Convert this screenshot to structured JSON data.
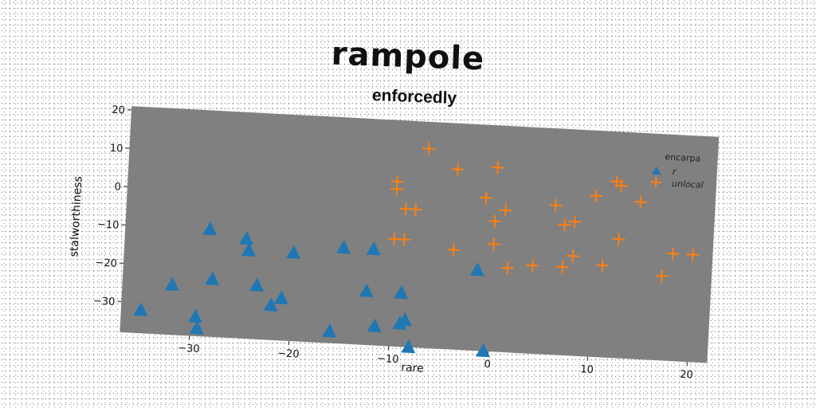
{
  "chart_data": {
    "type": "scatter",
    "title": "rampole",
    "subtitle": "enforcedly",
    "xlabel": "rare",
    "ylabel": "stalworthiness",
    "xlim": [
      -37,
      22
    ],
    "ylim": [
      -38,
      21
    ],
    "xticks": [
      -30,
      -20,
      -10,
      0,
      10,
      20
    ],
    "yticks": [
      -30,
      -20,
      -10,
      0,
      10,
      20
    ],
    "tick_labels_x": [
      "−30",
      "−20",
      "−10",
      "0",
      "10",
      "20"
    ],
    "tick_labels_y": [
      "−30",
      "−20",
      "−10",
      "0",
      "10",
      "20"
    ],
    "grid": false,
    "legend": {
      "title": "encarpa",
      "placement": "top-right"
    },
    "series": [
      {
        "name": "r",
        "marker": "triangle",
        "color": "#1f77b4",
        "points": [
          [
            -35,
            -32
          ],
          [
            -32,
            -25
          ],
          [
            -29.5,
            -33
          ],
          [
            -29.3,
            -36
          ],
          [
            -28,
            -23
          ],
          [
            -28.5,
            -10
          ],
          [
            -24.8,
            -12
          ],
          [
            -24.5,
            -15
          ],
          [
            -23.5,
            -24
          ],
          [
            -22,
            -29
          ],
          [
            -21,
            -27
          ],
          [
            -20,
            -15
          ],
          [
            -16,
            -35
          ],
          [
            -15,
            -13
          ],
          [
            -12.5,
            -24
          ],
          [
            -12,
            -13
          ],
          [
            -11.5,
            -33
          ],
          [
            -9,
            -24
          ],
          [
            -9,
            -32
          ],
          [
            -8.5,
            -31
          ],
          [
            -8,
            -38
          ],
          [
            -1.5,
            -17
          ],
          [
            -0.5,
            -38
          ]
        ]
      },
      {
        "name": "unlocal",
        "marker": "plus",
        "color": "#ff7f0e",
        "points": [
          [
            -7,
            14
          ],
          [
            -10,
            5
          ],
          [
            -10,
            3
          ],
          [
            -9,
            -2
          ],
          [
            -8,
            -2
          ],
          [
            -10,
            -10
          ],
          [
            -9,
            -10
          ],
          [
            -4,
            9
          ],
          [
            -4,
            -12
          ],
          [
            -1,
            2
          ],
          [
            0,
            10
          ],
          [
            0,
            -4
          ],
          [
            0,
            -10
          ],
          [
            1,
            -1
          ],
          [
            1.5,
            -16
          ],
          [
            4,
            -15
          ],
          [
            6,
            1
          ],
          [
            7,
            -4
          ],
          [
            7,
            -15
          ],
          [
            8,
            -3
          ],
          [
            8,
            -12
          ],
          [
            10,
            4
          ],
          [
            11,
            -14
          ],
          [
            12,
            8
          ],
          [
            12.5,
            7
          ],
          [
            12.5,
            -7
          ],
          [
            14.5,
            3
          ],
          [
            17,
            -16
          ],
          [
            18,
            -10
          ],
          [
            20,
            -10
          ]
        ]
      }
    ]
  }
}
